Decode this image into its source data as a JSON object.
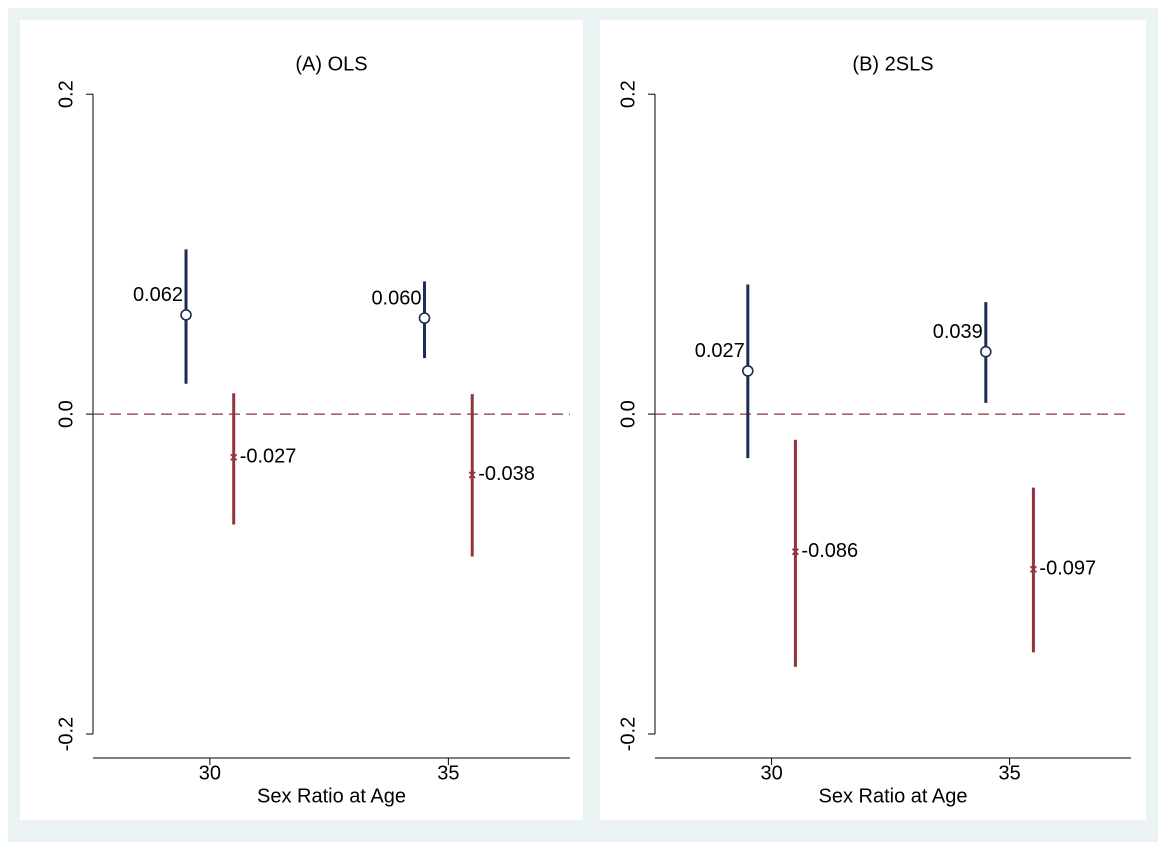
{
  "chart_data": [
    {
      "type": "errorbar",
      "title": "(A) OLS",
      "xlabel": "Sex Ratio at Age",
      "xlim": [
        27.55,
        37.55
      ],
      "xticks": [
        30,
        35
      ],
      "ylim": [
        -0.215,
        0.212
      ],
      "yticks": [
        {
          "value": -0.2,
          "label": "-0.2"
        },
        {
          "value": 0,
          "label": "0.0"
        },
        {
          "value": 0.2,
          "label": "0.2"
        }
      ],
      "hline": 0,
      "hline_color": "#90353b",
      "series": [
        {
          "color": "#1c2d52",
          "marker": "circle",
          "x": [
            29.5,
            34.5
          ],
          "values": [
            0.062,
            0.06
          ],
          "value_labels": [
            "0.062",
            "0.060"
          ],
          "lower": [
            0.019,
            0.035
          ],
          "upper": [
            0.103,
            0.083
          ]
        },
        {
          "color": "#90353b",
          "marker": "x",
          "x": [
            30.5,
            35.5
          ],
          "values": [
            -0.027,
            -0.038
          ],
          "value_labels": [
            "-0.027",
            "-0.038"
          ],
          "lower": [
            -0.069,
            -0.089
          ],
          "upper": [
            0.013,
            0.0125
          ]
        }
      ]
    },
    {
      "type": "errorbar",
      "title": "(B) 2SLS",
      "xlabel": "Sex Ratio at Age",
      "xlim": [
        27.55,
        37.55
      ],
      "xticks": [
        30,
        35
      ],
      "ylim": [
        -0.215,
        0.212
      ],
      "yticks": [
        {
          "value": -0.2,
          "label": "-0.2"
        },
        {
          "value": 0,
          "label": "0.0"
        },
        {
          "value": 0.2,
          "label": "0.2"
        }
      ],
      "hline": 0,
      "hline_color": "#90353b",
      "series": [
        {
          "color": "#1c2d52",
          "marker": "circle",
          "x": [
            29.5,
            34.5
          ],
          "values": [
            0.027,
            0.039
          ],
          "value_labels": [
            "0.027",
            "0.039"
          ],
          "lower": [
            -0.0275,
            0.007
          ],
          "upper": [
            0.081,
            0.07
          ]
        },
        {
          "color": "#90353b",
          "marker": "x",
          "x": [
            30.5,
            35.5
          ],
          "values": [
            -0.086,
            -0.097
          ],
          "value_labels": [
            "-0.086",
            "-0.097"
          ],
          "lower": [
            -0.158,
            -0.149
          ],
          "upper": [
            -0.016,
            -0.046
          ]
        }
      ]
    }
  ]
}
